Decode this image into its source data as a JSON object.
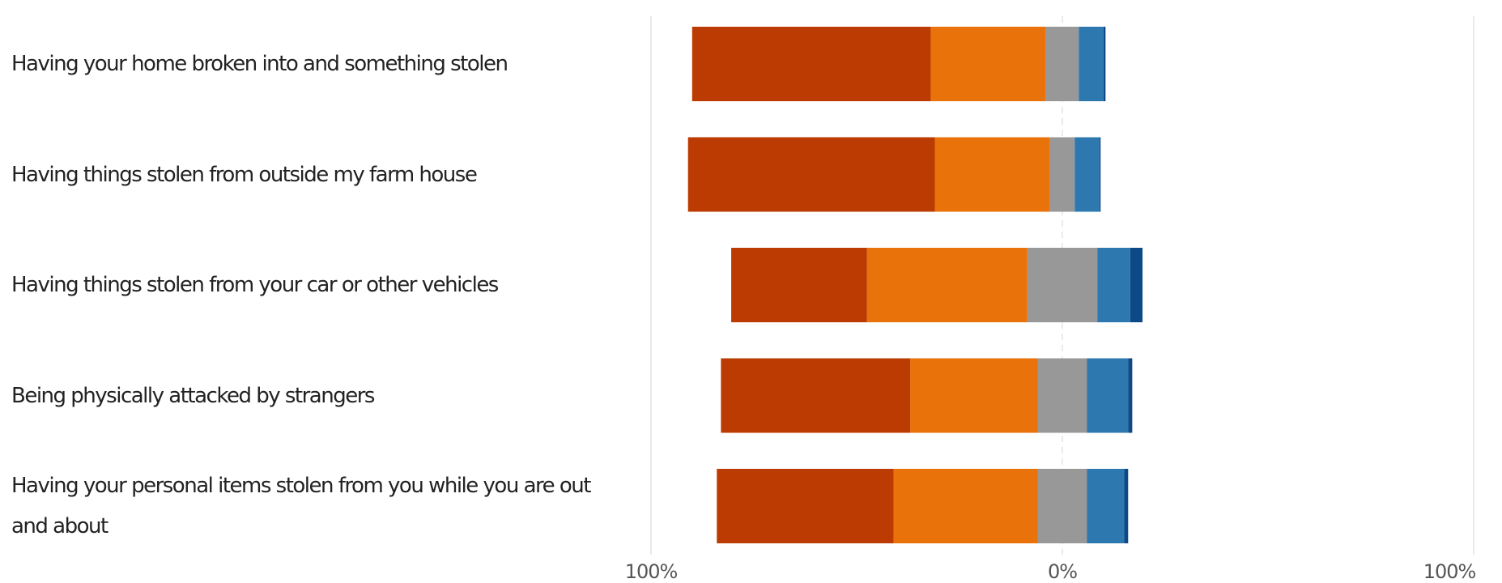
{
  "chart_data": {
    "type": "diverging_bar",
    "categories": [
      "Having your home broken into and something stolen",
      "Having things stolen from outside  my farm house",
      "Having things stolen from your car  or other vehicles",
      "Being physically attacked by strangers",
      "Having your personal items stolen from you while you are out and about"
    ],
    "series": [
      {
        "color": "#bc3b02",
        "values": [
          58,
          60,
          33,
          46,
          43
        ]
      },
      {
        "color": "#ea720a",
        "values": [
          28,
          28,
          39,
          31,
          35
        ]
      },
      {
        "color": "#989898",
        "values": [
          8,
          6,
          17,
          12,
          12
        ]
      },
      {
        "color": "#2e78b0",
        "values": [
          6,
          6,
          8,
          10,
          9
        ]
      },
      {
        "color": "#0b4a86",
        "values": [
          0.5,
          0.3,
          3,
          1,
          1
        ]
      }
    ],
    "xlim": [
      -100,
      100
    ],
    "xticks": [
      {
        "value": -100,
        "label": "100%"
      },
      {
        "value": 0,
        "label": "0%"
      },
      {
        "value": 100,
        "label": "100%"
      }
    ],
    "grid": true
  }
}
